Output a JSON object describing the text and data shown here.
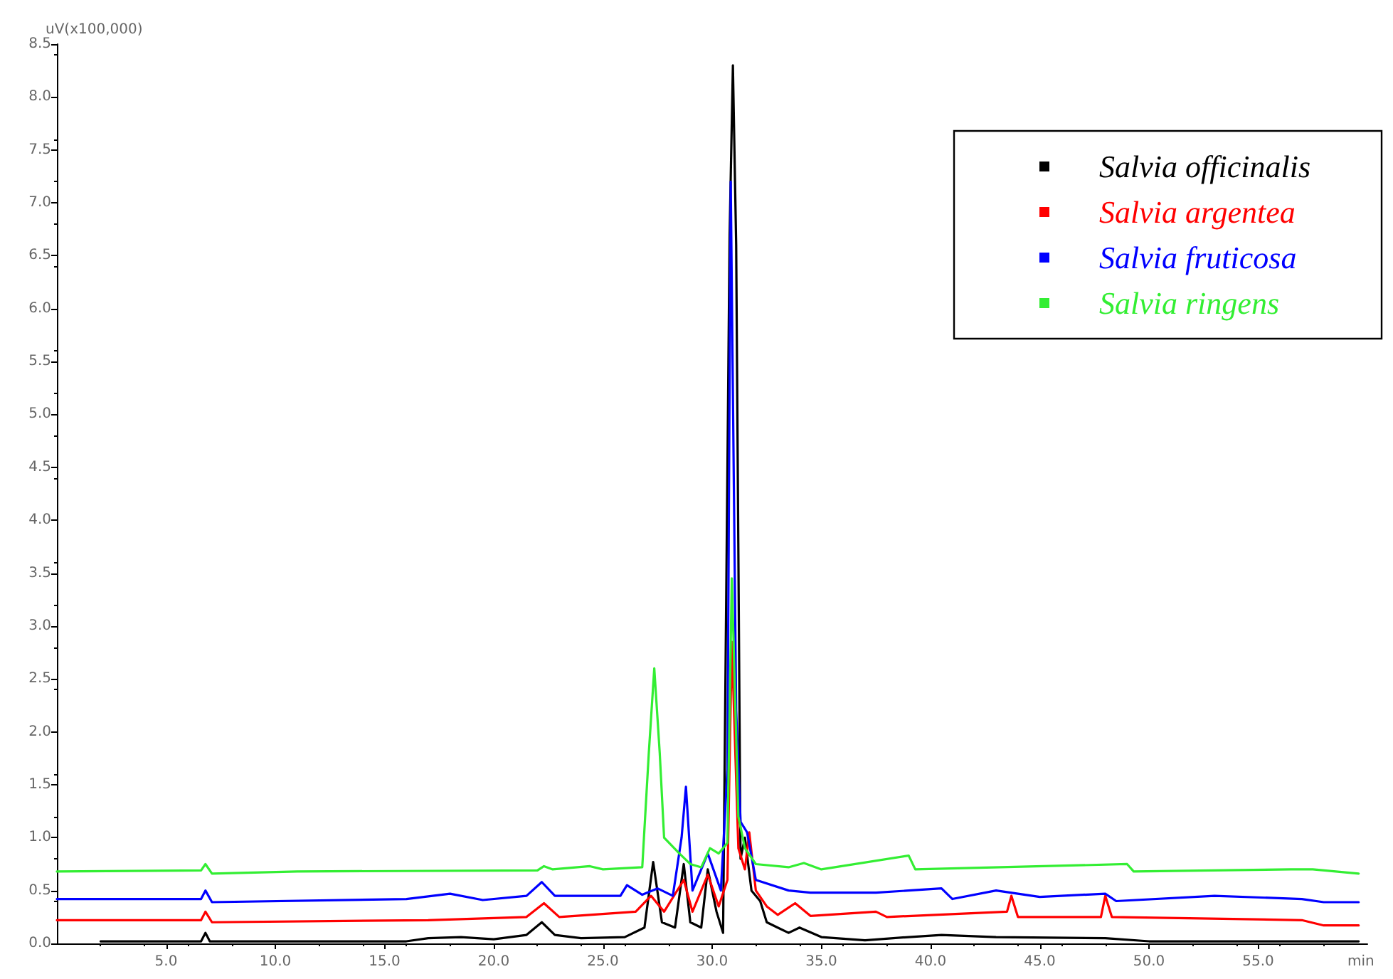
{
  "chart_data": {
    "type": "line",
    "ylabel": "uV(x100,000)",
    "xlabel": "min",
    "xlim": [
      0,
      60
    ],
    "ylim": [
      0,
      8.5
    ],
    "xticks": [
      {
        "value": 5,
        "label": "5.0"
      },
      {
        "value": 10,
        "label": "10.0"
      },
      {
        "value": 15,
        "label": "15.0"
      },
      {
        "value": 20,
        "label": "20.0"
      },
      {
        "value": 25,
        "label": "25.0"
      },
      {
        "value": 30,
        "label": "30.0"
      },
      {
        "value": 35,
        "label": "35.0"
      },
      {
        "value": 40,
        "label": "40.0"
      },
      {
        "value": 45,
        "label": "45.0"
      },
      {
        "value": 50,
        "label": "50.0"
      },
      {
        "value": 55,
        "label": "55.0"
      }
    ],
    "yticks": [
      {
        "value": 0,
        "label": "0.0"
      },
      {
        "value": 0.5,
        "label": "0.5"
      },
      {
        "value": 1,
        "label": "1.0"
      },
      {
        "value": 1.5,
        "label": "1.5"
      },
      {
        "value": 2,
        "label": "2.0"
      },
      {
        "value": 2.5,
        "label": "2.5"
      },
      {
        "value": 3,
        "label": "3.0"
      },
      {
        "value": 3.5,
        "label": "3.5"
      },
      {
        "value": 4,
        "label": "4.0"
      },
      {
        "value": 4.5,
        "label": "4.5"
      },
      {
        "value": 5,
        "label": "5.0"
      },
      {
        "value": 5.5,
        "label": "5.5"
      },
      {
        "value": 6,
        "label": "6.0"
      },
      {
        "value": 6.5,
        "label": "6.5"
      },
      {
        "value": 7,
        "label": "7.0"
      },
      {
        "value": 7.5,
        "label": "7.5"
      },
      {
        "value": 8,
        "label": "8.0"
      },
      {
        "value": 8.5,
        "label": "8.5"
      }
    ],
    "grid": false,
    "legend": "top right",
    "marker": "none",
    "line_style": "solid",
    "series": [
      {
        "name": "Salvia officinalis",
        "color": "#000000",
        "x": [
          2,
          6.6,
          6.8,
          7.0,
          16,
          17,
          18.5,
          20,
          21.5,
          22.2,
          22.8,
          24,
          26,
          26.9,
          27.3,
          27.7,
          28.3,
          28.7,
          29.0,
          29.5,
          29.8,
          30.2,
          30.5,
          30.8,
          30.95,
          31.1,
          31.3,
          31.5,
          31.8,
          32.2,
          32.5,
          33,
          33.5,
          34,
          35,
          37,
          39,
          40.5,
          43,
          48,
          50,
          59.6
        ],
        "values": [
          0.02,
          0.02,
          0.1,
          0.02,
          0.02,
          0.05,
          0.06,
          0.04,
          0.08,
          0.2,
          0.08,
          0.05,
          0.06,
          0.15,
          0.77,
          0.2,
          0.15,
          0.75,
          0.2,
          0.15,
          0.7,
          0.3,
          0.1,
          6.7,
          8.3,
          6.6,
          0.8,
          1.0,
          0.5,
          0.4,
          0.2,
          0.15,
          0.1,
          0.15,
          0.06,
          0.03,
          0.06,
          0.08,
          0.06,
          0.05,
          0.02,
          0.02
        ]
      },
      {
        "name": "Salvia argentea",
        "color": "#ff0000",
        "x": [
          0,
          6.6,
          6.8,
          7.1,
          17,
          21.5,
          22.3,
          23,
          26.5,
          27.2,
          27.8,
          28.7,
          29.1,
          29.8,
          30.3,
          30.7,
          30.9,
          31.2,
          31.5,
          31.7,
          32,
          32.5,
          33,
          33.8,
          34.5,
          37.5,
          38,
          43.5,
          43.7,
          44,
          47.8,
          48,
          48.3,
          57,
          58,
          59.6
        ],
        "values": [
          0.22,
          0.22,
          0.3,
          0.2,
          0.22,
          0.25,
          0.38,
          0.25,
          0.3,
          0.45,
          0.3,
          0.6,
          0.3,
          0.65,
          0.35,
          0.6,
          2.85,
          0.9,
          0.7,
          1.05,
          0.5,
          0.35,
          0.27,
          0.38,
          0.26,
          0.3,
          0.25,
          0.3,
          0.45,
          0.25,
          0.25,
          0.45,
          0.25,
          0.22,
          0.17,
          0.17
        ]
      },
      {
        "name": "Salvia fruticosa",
        "color": "#0000ff",
        "x": [
          0,
          6.6,
          6.8,
          7.1,
          16,
          18,
          19.5,
          21.5,
          22.2,
          22.8,
          25.8,
          26.1,
          26.8,
          27.5,
          28.2,
          28.6,
          28.8,
          29.1,
          29.8,
          30.4,
          30.7,
          30.85,
          31.1,
          31.3,
          31.6,
          32,
          33.5,
          34.5,
          37.5,
          39,
          40.5,
          41,
          43,
          45,
          48,
          48.5,
          53,
          57,
          58,
          59.6
        ],
        "values": [
          0.42,
          0.42,
          0.5,
          0.39,
          0.42,
          0.47,
          0.41,
          0.45,
          0.58,
          0.45,
          0.45,
          0.55,
          0.46,
          0.52,
          0.45,
          1.0,
          1.48,
          0.5,
          0.85,
          0.5,
          1.65,
          7.2,
          2.2,
          1.15,
          1.05,
          0.6,
          0.5,
          0.48,
          0.48,
          0.5,
          0.52,
          0.42,
          0.5,
          0.44,
          0.47,
          0.4,
          0.45,
          0.42,
          0.39,
          0.39
        ]
      },
      {
        "name": "Salvia ringens",
        "color": "#33ee33",
        "x": [
          0,
          6.6,
          6.8,
          7.1,
          11,
          22,
          22.3,
          22.7,
          24.4,
          25,
          26.8,
          27.1,
          27.35,
          27.6,
          27.8,
          28.5,
          29,
          29.5,
          29.9,
          30.3,
          30.7,
          30.9,
          31.2,
          31.5,
          32,
          33.5,
          34.2,
          35,
          39,
          39.3,
          49,
          49.3,
          56.5,
          57.5,
          59.6
        ],
        "values": [
          0.68,
          0.69,
          0.75,
          0.66,
          0.68,
          0.69,
          0.73,
          0.7,
          0.73,
          0.7,
          0.72,
          1.8,
          2.6,
          1.8,
          1.0,
          0.85,
          0.75,
          0.72,
          0.9,
          0.85,
          0.95,
          3.45,
          1.2,
          0.9,
          0.75,
          0.72,
          0.76,
          0.7,
          0.83,
          0.7,
          0.75,
          0.68,
          0.7,
          0.7,
          0.66
        ]
      }
    ]
  }
}
